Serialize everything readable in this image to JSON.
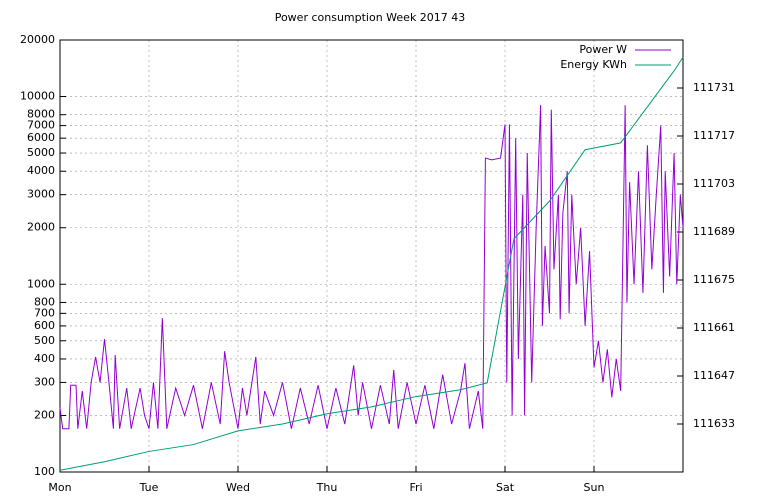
{
  "chart_data": {
    "type": "line",
    "title": "Power consumption Week 2017 43",
    "xlim": [
      0,
      7
    ],
    "xticks": [
      {
        "value": 0,
        "label": "Mon"
      },
      {
        "value": 1,
        "label": "Tue"
      },
      {
        "value": 2,
        "label": "Wed"
      },
      {
        "value": 3,
        "label": "Thu"
      },
      {
        "value": 4,
        "label": "Fri"
      },
      {
        "value": 5,
        "label": "Sat"
      },
      {
        "value": 6,
        "label": "Sun"
      }
    ],
    "ylim": [
      100,
      20000
    ],
    "log_y": true,
    "yticks": [
      100,
      200,
      300,
      400,
      500,
      600,
      700,
      800,
      1000,
      2000,
      3000,
      4000,
      5000,
      6000,
      7000,
      8000,
      10000,
      20000
    ],
    "y2lim": [
      111619,
      111745
    ],
    "y2ticks": [
      111633,
      111647,
      111661,
      111675,
      111689,
      111703,
      111717,
      111731
    ],
    "grid": true,
    "legend": "top-right",
    "series": [
      {
        "name": "Power W",
        "color": "#9400d3",
        "x": [
          0,
          0.03,
          0.1,
          0.12,
          0.18,
          0.2,
          0.25,
          0.3,
          0.35,
          0.4,
          0.45,
          0.5,
          0.55,
          0.6,
          0.62,
          0.67,
          0.75,
          0.8,
          0.9,
          0.95,
          1.0,
          1.05,
          1.1,
          1.15,
          1.2,
          1.3,
          1.4,
          1.5,
          1.6,
          1.7,
          1.8,
          1.85,
          1.9,
          2.0,
          2.05,
          2.1,
          2.2,
          2.25,
          2.3,
          2.4,
          2.5,
          2.6,
          2.7,
          2.8,
          2.9,
          3.0,
          3.1,
          3.2,
          3.3,
          3.35,
          3.4,
          3.5,
          3.6,
          3.7,
          3.75,
          3.8,
          3.9,
          4.0,
          4.1,
          4.2,
          4.3,
          4.4,
          4.5,
          4.55,
          4.6,
          4.7,
          4.75,
          4.78,
          4.85,
          4.95,
          5.0,
          5.02,
          5.05,
          5.08,
          5.12,
          5.15,
          5.2,
          5.22,
          5.25,
          5.3,
          5.35,
          5.4,
          5.42,
          5.45,
          5.5,
          5.52,
          5.55,
          5.6,
          5.62,
          5.65,
          5.7,
          5.72,
          5.75,
          5.8,
          5.85,
          5.9,
          5.95,
          6.0,
          6.05,
          6.1,
          6.15,
          6.2,
          6.25,
          6.3,
          6.35,
          6.37,
          6.4,
          6.45,
          6.5,
          6.55,
          6.6,
          6.65,
          6.7,
          6.75,
          6.78,
          6.8,
          6.85,
          6.9,
          6.93,
          6.97,
          7.0
        ],
        "values": [
          220,
          170,
          170,
          290,
          290,
          170,
          270,
          170,
          300,
          410,
          300,
          510,
          300,
          170,
          420,
          170,
          280,
          170,
          280,
          200,
          170,
          300,
          170,
          660,
          170,
          280,
          200,
          290,
          170,
          300,
          180,
          440,
          300,
          170,
          280,
          200,
          410,
          180,
          270,
          200,
          300,
          170,
          280,
          180,
          290,
          170,
          280,
          180,
          370,
          200,
          300,
          170,
          290,
          180,
          350,
          170,
          300,
          180,
          290,
          170,
          330,
          180,
          270,
          380,
          170,
          270,
          170,
          4700,
          4600,
          4700,
          7100,
          300,
          7100,
          200,
          6000,
          400,
          3000,
          200,
          5000,
          300,
          2000,
          9000,
          600,
          1600,
          700,
          8500,
          1200,
          3000,
          650,
          2400,
          4000,
          700,
          3000,
          1000,
          2000,
          600,
          1500,
          360,
          500,
          300,
          450,
          250,
          400,
          270,
          9000,
          800,
          3500,
          1000,
          4000,
          900,
          5500,
          1200,
          3000,
          7000,
          900,
          4000,
          1100,
          5000,
          1000,
          3000,
          2000
        ]
      },
      {
        "name": "Energy KWh",
        "color": "#009e73",
        "axis": "y2",
        "x": [
          0,
          0.5,
          1,
          1.5,
          2,
          2.5,
          3,
          3.5,
          4,
          4.5,
          4.8,
          5.1,
          5.5,
          5.9,
          6.3,
          6.5,
          6.9,
          7
        ],
        "values": [
          111619.5,
          111622,
          111625,
          111627,
          111631,
          111633,
          111636,
          111638,
          111641,
          111643,
          111645,
          111687,
          111698,
          111713,
          111715,
          111722,
          111736,
          111740
        ]
      }
    ]
  }
}
